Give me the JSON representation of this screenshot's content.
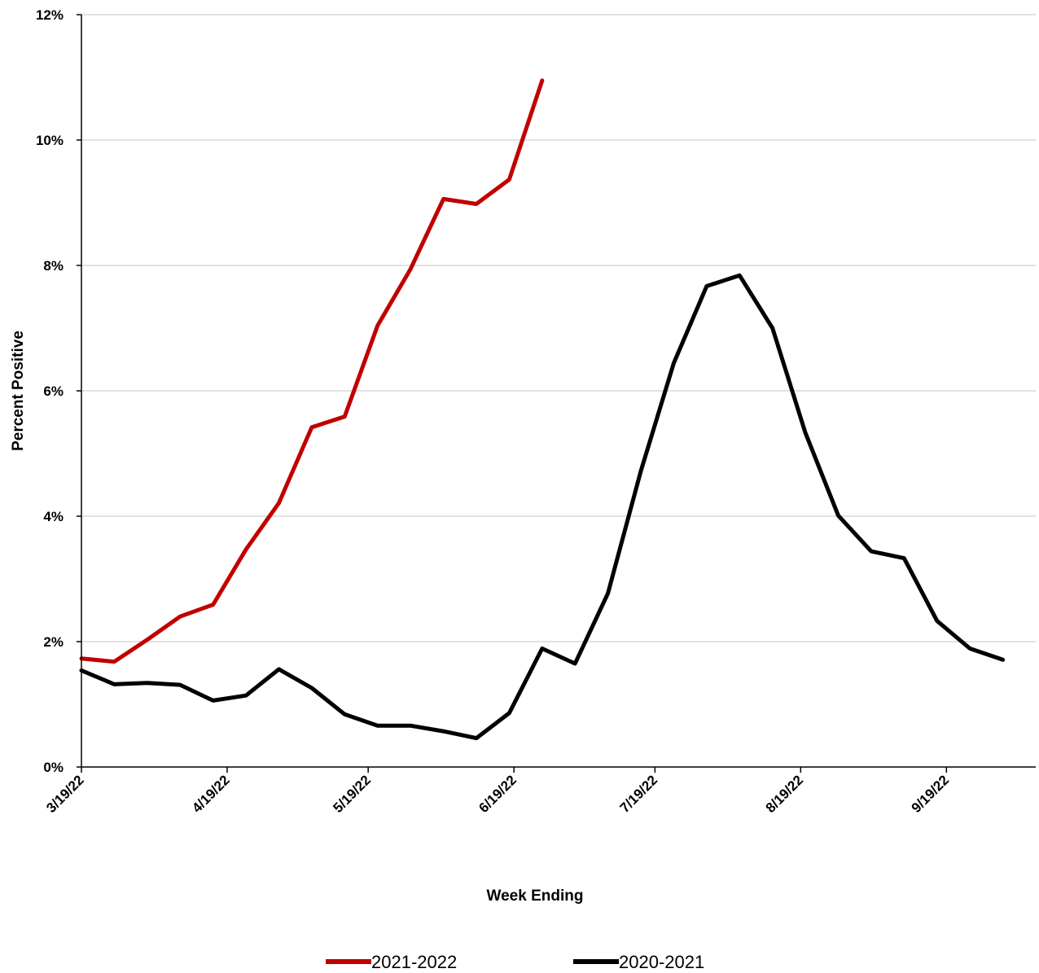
{
  "chart_data": {
    "type": "line",
    "xlabel": "Week Ending",
    "ylabel": "Percent Positive",
    "x_tick_labels": [
      "3/19/22",
      "4/19/22",
      "5/19/22",
      "6/19/22",
      "7/19/22",
      "8/19/22",
      "9/19/22"
    ],
    "x_tick_dates": [
      "2022-03-19",
      "2022-04-19",
      "2022-05-19",
      "2022-06-19",
      "2022-07-19",
      "2022-08-19",
      "2022-09-19"
    ],
    "xlim": [
      "2022-03-19",
      "2022-10-08"
    ],
    "y_tick_labels": [
      "0%",
      "2%",
      "4%",
      "6%",
      "8%",
      "10%",
      "12%"
    ],
    "y_ticks": [
      0,
      2,
      4,
      6,
      8,
      10,
      12
    ],
    "ylim": [
      0,
      12
    ],
    "grid": "horizontal",
    "legend_position": "bottom",
    "series": [
      {
        "name": "2021-2022",
        "color": "#c00000",
        "x": [
          "2022-03-19",
          "2022-03-26",
          "2022-04-02",
          "2022-04-09",
          "2022-04-16",
          "2022-04-23",
          "2022-04-30",
          "2022-05-07",
          "2022-05-14",
          "2022-05-21",
          "2022-05-28",
          "2022-06-04",
          "2022-06-11",
          "2022-06-18",
          "2022-06-25"
        ],
        "values": [
          1.73,
          1.68,
          2.03,
          2.4,
          2.59,
          3.47,
          4.21,
          5.42,
          5.59,
          7.04,
          7.94,
          9.06,
          8.98,
          9.37,
          10.95
        ]
      },
      {
        "name": "2020-2021",
        "color": "#000000",
        "x": [
          "2022-03-19",
          "2022-03-26",
          "2022-04-02",
          "2022-04-09",
          "2022-04-16",
          "2022-04-23",
          "2022-04-30",
          "2022-05-07",
          "2022-05-14",
          "2022-05-21",
          "2022-05-28",
          "2022-06-04",
          "2022-06-11",
          "2022-06-18",
          "2022-06-25",
          "2022-07-02",
          "2022-07-09",
          "2022-07-16",
          "2022-07-23",
          "2022-07-30",
          "2022-08-06",
          "2022-08-13",
          "2022-08-20",
          "2022-08-27",
          "2022-09-03",
          "2022-09-10",
          "2022-09-17",
          "2022-09-24",
          "2022-10-01"
        ],
        "values": [
          1.54,
          1.32,
          1.34,
          1.31,
          1.06,
          1.14,
          1.56,
          1.26,
          0.84,
          0.66,
          0.66,
          0.57,
          0.46,
          0.86,
          1.89,
          1.65,
          2.77,
          4.72,
          6.44,
          7.67,
          7.84,
          7.0,
          5.33,
          4.01,
          3.44,
          3.33,
          2.33,
          1.89,
          1.71
        ]
      }
    ]
  }
}
